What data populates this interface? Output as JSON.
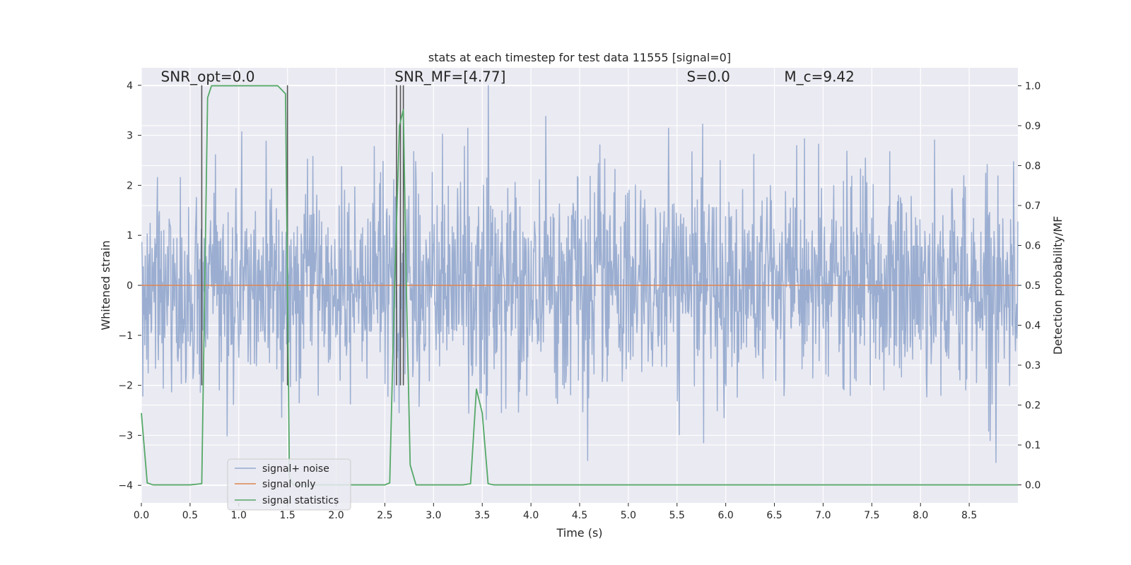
{
  "chart_data": {
    "type": "line",
    "title": "stats at each timestep for test data 11555 [signal=0]",
    "xlabel": "Time (s)",
    "ylabel_left": "Whitened strain",
    "ylabel_right": "Detection probability/MF",
    "xlim": [
      0.0,
      9.0
    ],
    "ylim_left": [
      -4.35,
      4.35
    ],
    "ylim_right": [
      -0.045,
      1.045
    ],
    "x_ticks": [
      0.0,
      0.5,
      1.0,
      1.5,
      2.0,
      2.5,
      3.0,
      3.5,
      4.0,
      4.5,
      5.0,
      5.5,
      6.0,
      6.5,
      7.0,
      7.5,
      8.0,
      8.5
    ],
    "x_tick_labels": [
      "0.0",
      "0.5",
      "1.0",
      "1.5",
      "2.0",
      "2.5",
      "3.0",
      "3.5",
      "4.0",
      "4.5",
      "5.0",
      "5.5",
      "6.0",
      "6.5",
      "7.0",
      "7.5",
      "8.0",
      "8.5"
    ],
    "y_left_ticks": [
      -4,
      -3,
      -2,
      -1,
      0,
      1,
      2,
      3,
      4
    ],
    "y_left_tick_labels": [
      "−4",
      "−3",
      "−2",
      "−1",
      "0",
      "1",
      "2",
      "3",
      "4"
    ],
    "y_right_ticks": [
      0.0,
      0.1,
      0.2,
      0.3,
      0.4,
      0.5,
      0.6,
      0.7,
      0.8,
      0.9,
      1.0
    ],
    "y_right_tick_labels": [
      "0.0",
      "0.1",
      "0.2",
      "0.3",
      "0.4",
      "0.5",
      "0.6",
      "0.7",
      "0.8",
      "0.9",
      "1.0"
    ],
    "grid": true,
    "background": "#eaeaf2",
    "legend_position": "lower-left",
    "annotations": [
      {
        "id": "snr-opt",
        "text": "SNR_opt=0.0",
        "x": 0.2,
        "y": 4.1
      },
      {
        "id": "snr-mf",
        "text": "SNR_MF=[4.77]",
        "x": 2.6,
        "y": 4.1
      },
      {
        "id": "s-value",
        "text": "S=0.0",
        "x": 5.6,
        "y": 4.1
      },
      {
        "id": "mc-value",
        "text": "M_c=9.42",
        "x": 6.6,
        "y": 4.1
      }
    ],
    "vertical_markers": [
      0.62,
      1.5,
      2.62,
      2.66,
      2.69
    ],
    "marker_range_left": [
      -2.0,
      4.0
    ],
    "series": [
      {
        "name": "signal+ noise",
        "color": "#4c72b0",
        "alpha": 0.5,
        "kind": "noise",
        "samples": 1800,
        "sigma": 1.05,
        "clip": [
          -3.9,
          4.0
        ]
      },
      {
        "name": "signal only",
        "color": "#dd8452",
        "kind": "line",
        "x": [
          0.0,
          9.0
        ],
        "y": [
          0.0,
          0.0
        ]
      },
      {
        "name": "signal statistics",
        "color": "#55a868",
        "kind": "line",
        "axis": "right",
        "x": [
          0.0,
          0.06,
          0.12,
          0.5,
          0.62,
          0.68,
          0.72,
          1.4,
          1.48,
          1.5,
          1.52,
          1.56,
          2.0,
          2.5,
          2.55,
          2.6,
          2.65,
          2.69,
          2.72,
          2.76,
          2.82,
          3.3,
          3.38,
          3.44,
          3.5,
          3.56,
          3.62,
          9.0
        ],
        "y": [
          0.18,
          0.005,
          0.0,
          0.0,
          0.003,
          0.97,
          1.0,
          1.0,
          0.98,
          0.5,
          0.02,
          0.0,
          0.0,
          0.0,
          0.005,
          0.5,
          0.9,
          0.94,
          0.5,
          0.05,
          0.0,
          0.0,
          0.003,
          0.24,
          0.18,
          0.003,
          0.0,
          0.0
        ]
      }
    ]
  },
  "legend": {
    "items": [
      {
        "label": "signal+ noise",
        "color": "#4c72b0"
      },
      {
        "label": "signal only",
        "color": "#dd8452"
      },
      {
        "label": "signal statistics",
        "color": "#55a868"
      }
    ]
  }
}
